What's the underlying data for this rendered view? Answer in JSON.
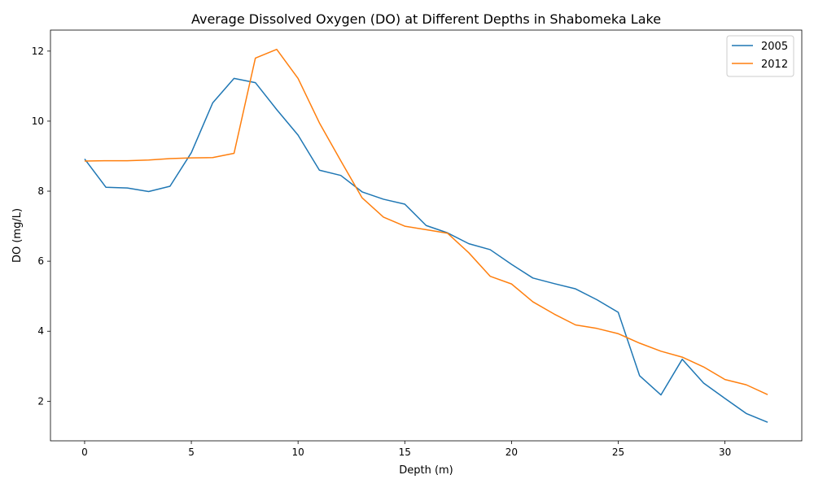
{
  "chart_data": {
    "type": "line",
    "title": "Average Dissolved Oxygen (DO) at Different Depths in Shabomeka Lake",
    "xlabel": "Depth (m)",
    "ylabel": "DO (mg/L)",
    "xlim": [
      -1.6,
      33.6
    ],
    "ylim": [
      0.87,
      12.6
    ],
    "xticks": [
      0,
      5,
      10,
      15,
      20,
      25,
      30
    ],
    "yticks": [
      2,
      4,
      6,
      8,
      10,
      12
    ],
    "grid": false,
    "legend_position": "top-right",
    "x": [
      0,
      1,
      2,
      3,
      4,
      5,
      6,
      7,
      8,
      9,
      10,
      11,
      12,
      13,
      14,
      15,
      16,
      17,
      18,
      19,
      20,
      21,
      22,
      23,
      24,
      25,
      26,
      27,
      28,
      29,
      30,
      31,
      32
    ],
    "series": [
      {
        "name": "2005",
        "color": "#1f77b4",
        "values": [
          8.92,
          8.11,
          8.09,
          7.99,
          8.14,
          9.1,
          10.52,
          11.22,
          11.1,
          10.33,
          9.6,
          8.6,
          8.45,
          7.98,
          7.77,
          7.63,
          7.02,
          6.81,
          6.5,
          6.33,
          5.91,
          5.52,
          5.36,
          5.21,
          4.9,
          4.54,
          2.73,
          2.18,
          3.2,
          2.52,
          2.08,
          1.65,
          1.4
        ]
      },
      {
        "name": "2012",
        "color": "#ff7f0e",
        "values": [
          8.86,
          8.87,
          8.87,
          8.89,
          8.93,
          8.95,
          8.96,
          9.08,
          11.8,
          12.05,
          11.22,
          9.95,
          8.87,
          7.81,
          7.26,
          7.0,
          6.9,
          6.8,
          6.24,
          5.57,
          5.35,
          4.84,
          4.49,
          4.18,
          4.08,
          3.93,
          3.66,
          3.43,
          3.26,
          2.98,
          2.62,
          2.47,
          2.19
        ]
      }
    ]
  }
}
